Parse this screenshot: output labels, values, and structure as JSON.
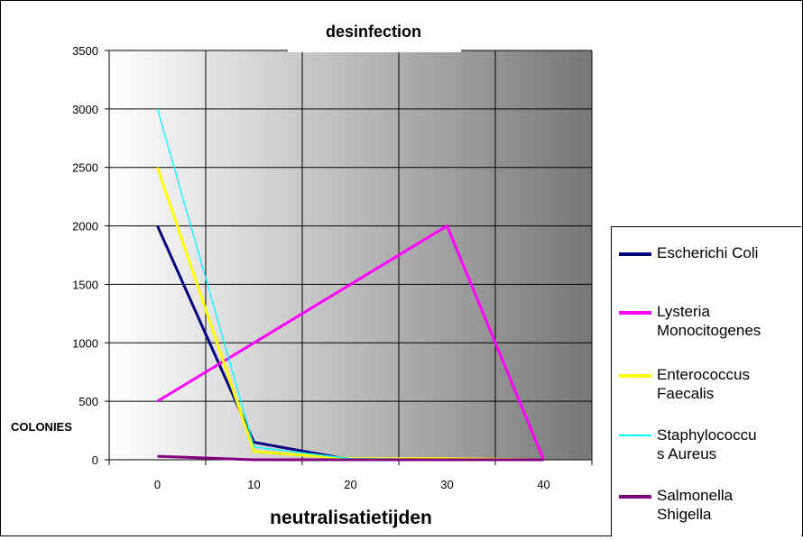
{
  "chart_data": {
    "type": "line",
    "title": "desinfection",
    "xlabel": "neutralisatietijden",
    "ylabel": "COLONIES",
    "x": [
      0,
      10,
      20,
      30,
      40
    ],
    "ylim": [
      0,
      3500
    ],
    "yticks": [
      0,
      500,
      1000,
      1500,
      2000,
      2500,
      3000,
      3500
    ],
    "xticks": [
      "0",
      "10",
      "20",
      "30",
      "40"
    ],
    "grid": true,
    "legend_position": "right",
    "background": "gradient white-to-gray",
    "series": [
      {
        "name": "Escherichi Coli",
        "color": "#000080",
        "values": [
          2000,
          150,
          0,
          0,
          0
        ]
      },
      {
        "name": "Lysteria\nMonocitogenes",
        "color": "#ff00ff",
        "values": [
          500,
          1000,
          1500,
          2000,
          0
        ]
      },
      {
        "name": "Enterococcus\nFaecalis",
        "color": "#ffff00",
        "values": [
          2500,
          70,
          10,
          10,
          0
        ]
      },
      {
        "name": "Staphylococcu\ns Aureus",
        "color": "#00ffff",
        "values": [
          3000,
          110,
          10,
          5,
          0
        ]
      },
      {
        "name": "Salmonella\nShigella",
        "color": "#800080",
        "values": [
          30,
          0,
          0,
          0,
          0
        ]
      }
    ]
  }
}
